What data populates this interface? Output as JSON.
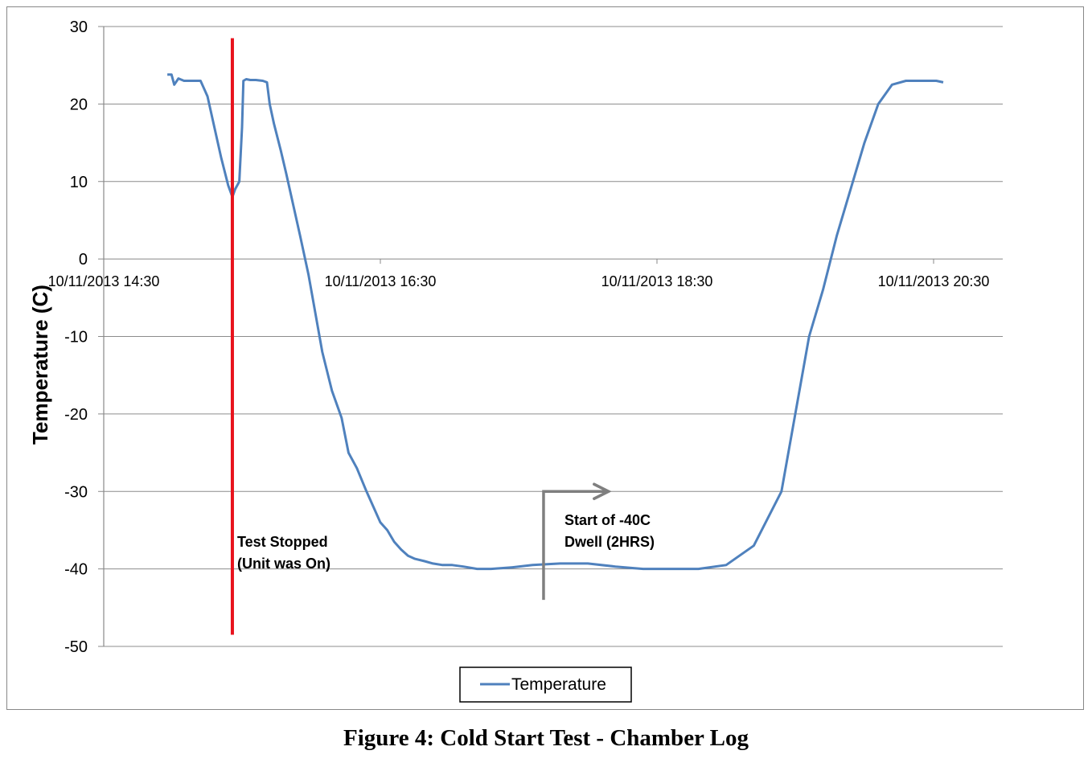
{
  "chart_data": {
    "type": "line",
    "title": "",
    "xlabel": "",
    "ylabel": "Temperature (C)",
    "ylim": [
      -50,
      30
    ],
    "yticks": [
      30,
      20,
      10,
      0,
      -10,
      -20,
      -30,
      -40,
      -50
    ],
    "xlim_hours": [
      14.5,
      21.0
    ],
    "xticks": [
      {
        "label": "10/11/2013 14:30",
        "hour": 14.5
      },
      {
        "label": "10/11/2013 16:30",
        "hour": 16.5
      },
      {
        "label": "10/11/2013 18:30",
        "hour": 18.5
      },
      {
        "label": "10/11/2013 20:30",
        "hour": 20.5
      }
    ],
    "grid": true,
    "legend_position": "bottom",
    "series": [
      {
        "name": "Temperature",
        "color": "#4f81bd",
        "x": [
          14.96,
          14.99,
          15.01,
          15.04,
          15.08,
          15.15,
          15.2,
          15.25,
          15.3,
          15.35,
          15.4,
          15.43,
          15.45,
          15.48,
          15.5,
          15.51,
          15.53,
          15.56,
          15.6,
          15.65,
          15.68,
          15.7,
          15.73,
          15.78,
          15.82,
          15.87,
          15.92,
          15.98,
          16.03,
          16.08,
          16.15,
          16.22,
          16.27,
          16.33,
          16.4,
          16.45,
          16.5,
          16.55,
          16.6,
          16.65,
          16.7,
          16.75,
          16.82,
          16.88,
          16.95,
          17.02,
          17.1,
          17.2,
          17.3,
          17.45,
          17.6,
          17.8,
          18.0,
          18.2,
          18.4,
          18.6,
          18.8,
          19.0,
          19.2,
          19.4,
          19.5,
          19.55,
          19.6,
          19.7,
          19.8,
          19.9,
          20.0,
          20.1,
          20.2,
          20.3,
          20.4,
          20.45,
          20.48,
          20.52,
          20.57
        ],
        "y": [
          23.8,
          23.8,
          22.5,
          23.3,
          23.0,
          23.0,
          23.0,
          21.0,
          17.0,
          13.0,
          9.5,
          8.0,
          9.0,
          10.0,
          17.0,
          23.0,
          23.2,
          23.1,
          23.1,
          23.0,
          22.8,
          20.0,
          17.5,
          14.0,
          11.0,
          7.0,
          3.0,
          -2.0,
          -7.0,
          -12.0,
          -17.0,
          -20.5,
          -25.0,
          -27.0,
          -30.0,
          -32.0,
          -34.0,
          -35.0,
          -36.5,
          -37.5,
          -38.3,
          -38.7,
          -39.0,
          -39.3,
          -39.5,
          -39.5,
          -39.7,
          -40.0,
          -40.0,
          -39.8,
          -39.5,
          -39.3,
          -39.3,
          -39.7,
          -40.0,
          -40.0,
          -40.0,
          -39.5,
          -37.0,
          -30.0,
          -20.0,
          -15.0,
          -10.0,
          -4.0,
          3.0,
          9.0,
          15.0,
          20.0,
          22.5,
          23.0,
          23.0,
          23.0,
          23.0,
          23.0,
          22.8
        ]
      }
    ],
    "annotations": [
      {
        "id": "test-stopped",
        "type": "vline",
        "color": "#e8131d",
        "hour": 15.43,
        "y_range": [
          -48.5,
          28.5
        ],
        "lines": [
          "Test Stopped",
          "(Unit was On)"
        ],
        "text_y": [
          -36.5,
          -39.3
        ]
      },
      {
        "id": "dwell-start",
        "type": "arrow",
        "color": "#7f7f7f",
        "hour": 17.68,
        "hour_end": 18.15,
        "y_bottom": -44,
        "y_top": -30,
        "lines": [
          "Start of -40C",
          "Dwell  (2HRS)"
        ],
        "text_y": [
          -33.7,
          -36.5
        ]
      }
    ]
  },
  "legend": {
    "label": "Temperature"
  },
  "caption": "Figure 4: Cold Start Test - Chamber Log"
}
